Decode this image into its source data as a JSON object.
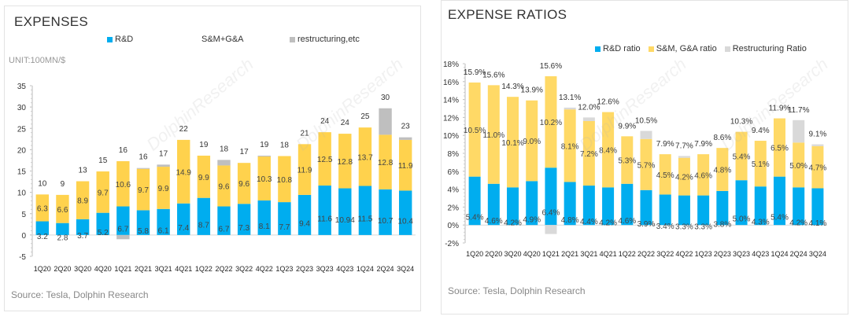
{
  "chart_data": [
    {
      "type": "bar",
      "stacked": true,
      "title": "EXPENSES",
      "unit_label": "UNIT:100MN/$",
      "xlabel": "",
      "ylabel": "",
      "ylim": [
        -5,
        35
      ],
      "yticks": [
        -5,
        0,
        5,
        10,
        15,
        20,
        25,
        30,
        35
      ],
      "ytick_labels": [
        "-5",
        "0",
        "5",
        "10",
        "15",
        "20",
        "25",
        "30",
        "35"
      ],
      "grid": false,
      "legend_position": "top",
      "categories": [
        "1Q20",
        "2Q20",
        "3Q20",
        "4Q20",
        "1Q21",
        "2Q21",
        "3Q21",
        "4Q21",
        "1Q22",
        "2Q22",
        "3Q22",
        "4Q22",
        "1Q23",
        "2Q23",
        "3Q23",
        "4Q23",
        "1Q24",
        "2Q24",
        "3Q24"
      ],
      "series": [
        {
          "name": "R&D",
          "color": "#00adef",
          "values": [
            3.2,
            2.8,
            3.7,
            5.2,
            6.7,
            5.8,
            6.1,
            7.4,
            8.7,
            6.7,
            7.3,
            8.1,
            7.7,
            9.4,
            11.6,
            10.94,
            11.5,
            10.7,
            10.4
          ],
          "labels": [
            "3.2",
            "2.8",
            "3.7",
            "5.2",
            "6.7",
            "5.8",
            "6.1",
            "7.4",
            "8.7",
            "6.7",
            "7.3",
            "8.1",
            "7.7",
            "9.4",
            "11.6",
            "10.94",
            "11.5",
            "10.7",
            "10.4"
          ]
        },
        {
          "name": "S&M+G&A",
          "color": "#ffd24d",
          "values": [
            6.3,
            6.6,
            8.9,
            9.7,
            10.6,
            9.7,
            9.9,
            14.9,
            9.9,
            9.6,
            9.6,
            10.3,
            10.8,
            11.9,
            12.5,
            12.8,
            13.7,
            12.8,
            11.9
          ],
          "labels": [
            "6.3",
            "6.6",
            "8.9",
            "9.7",
            "10.6",
            "9.7",
            "9.9",
            "14.9",
            "9.9",
            "9.6",
            "9.6",
            "10.3",
            "10.8",
            "11.9",
            "12.5",
            "12.8",
            "13.7",
            "12.8",
            "11.9"
          ]
        },
        {
          "name": "restructuring,etc",
          "color": "#bfbfbf",
          "values": [
            0,
            0,
            0,
            0,
            -1.0,
            0.2,
            0.5,
            0,
            0,
            1.3,
            0,
            0.2,
            0,
            0,
            0,
            0,
            0,
            6.2,
            0.6
          ]
        }
      ],
      "totals": [
        "10",
        "9",
        "13",
        "15",
        "16",
        "16",
        "17",
        "22",
        "19",
        "18",
        "17",
        "19",
        "18",
        "21",
        "24",
        "24",
        "25",
        "30",
        "23"
      ],
      "source": "Source: Tesla, Dolphin Research"
    },
    {
      "type": "bar",
      "stacked": true,
      "title": "EXPENSE RATIOS",
      "xlabel": "",
      "ylabel": "",
      "ylim": [
        -2,
        18
      ],
      "yticks": [
        -2,
        0,
        2,
        4,
        6,
        8,
        10,
        12,
        14,
        16,
        18
      ],
      "ytick_labels": [
        "-2%",
        "0%",
        "2%",
        "4%",
        "6%",
        "8%",
        "10%",
        "12%",
        "14%",
        "16%",
        "18%"
      ],
      "grid": false,
      "legend_position": "top-right",
      "categories": [
        "1Q20",
        "2Q20",
        "3Q20",
        "4Q20",
        "1Q21",
        "2Q21",
        "3Q21",
        "4Q21",
        "1Q22",
        "2Q22",
        "3Q22",
        "4Q22",
        "1Q23",
        "2Q23",
        "3Q23",
        "4Q23",
        "1Q24",
        "2Q24",
        "3Q24"
      ],
      "series": [
        {
          "name": "R&D ratio",
          "color": "#00adef",
          "values": [
            5.4,
            4.6,
            4.2,
            4.9,
            6.4,
            4.8,
            4.4,
            4.2,
            4.6,
            3.9,
            3.4,
            3.3,
            3.3,
            3.8,
            5.0,
            4.3,
            5.4,
            4.2,
            4.1
          ],
          "labels": [
            "5.4%",
            "4.6%",
            "4.2%",
            "4.9%",
            "6.4%",
            "4.8%",
            "4.4%",
            "4.2%",
            "4.6%",
            "3.9%",
            "3.4%",
            "3.3%",
            "3.3%",
            "3.8%",
            "5.0%",
            "4.3%",
            "5.4%",
            "4.2%",
            "4.1%"
          ]
        },
        {
          "name": "S&M, G&A ratio",
          "color": "#ffd966",
          "values": [
            10.5,
            11.0,
            10.1,
            9.0,
            10.2,
            8.1,
            7.2,
            8.4,
            5.3,
            5.7,
            4.5,
            4.2,
            4.6,
            4.8,
            5.4,
            5.1,
            6.5,
            5.0,
            4.7
          ],
          "labels": [
            "10.5%",
            "11.0%",
            "10.1%",
            "9.0%",
            "10.2%",
            "8.1%",
            "7.2%",
            "8.4%",
            "5.3%",
            "5.7%",
            "4.5%",
            "4.2%",
            "4.6%",
            "4.8%",
            "5.4%",
            "5.1%",
            "6.5%",
            "5.0%",
            "4.7%"
          ]
        },
        {
          "name": "Restructuring Ratio",
          "color": "#d9d9d9",
          "values": [
            0,
            0,
            0,
            0,
            -1.0,
            0.2,
            0.4,
            0,
            0,
            0.9,
            0,
            0.2,
            0,
            0,
            0,
            0,
            0,
            2.5,
            0.2
          ]
        }
      ],
      "totals": [
        "15.9%",
        "15.6%",
        "14.3%",
        "13.9%",
        "15.6%",
        "13.1%",
        "12.0%",
        "12.6%",
        "9.9%",
        "10.5%",
        "7.9%",
        "7.7%",
        "7.9%",
        "8.6%",
        "10.3%",
        "9.4%",
        "11.9%",
        "11.7%",
        "9.1%"
      ],
      "source": "Source: Tesla,  Dolphin Research"
    }
  ],
  "watermark": "DolphinResearch"
}
